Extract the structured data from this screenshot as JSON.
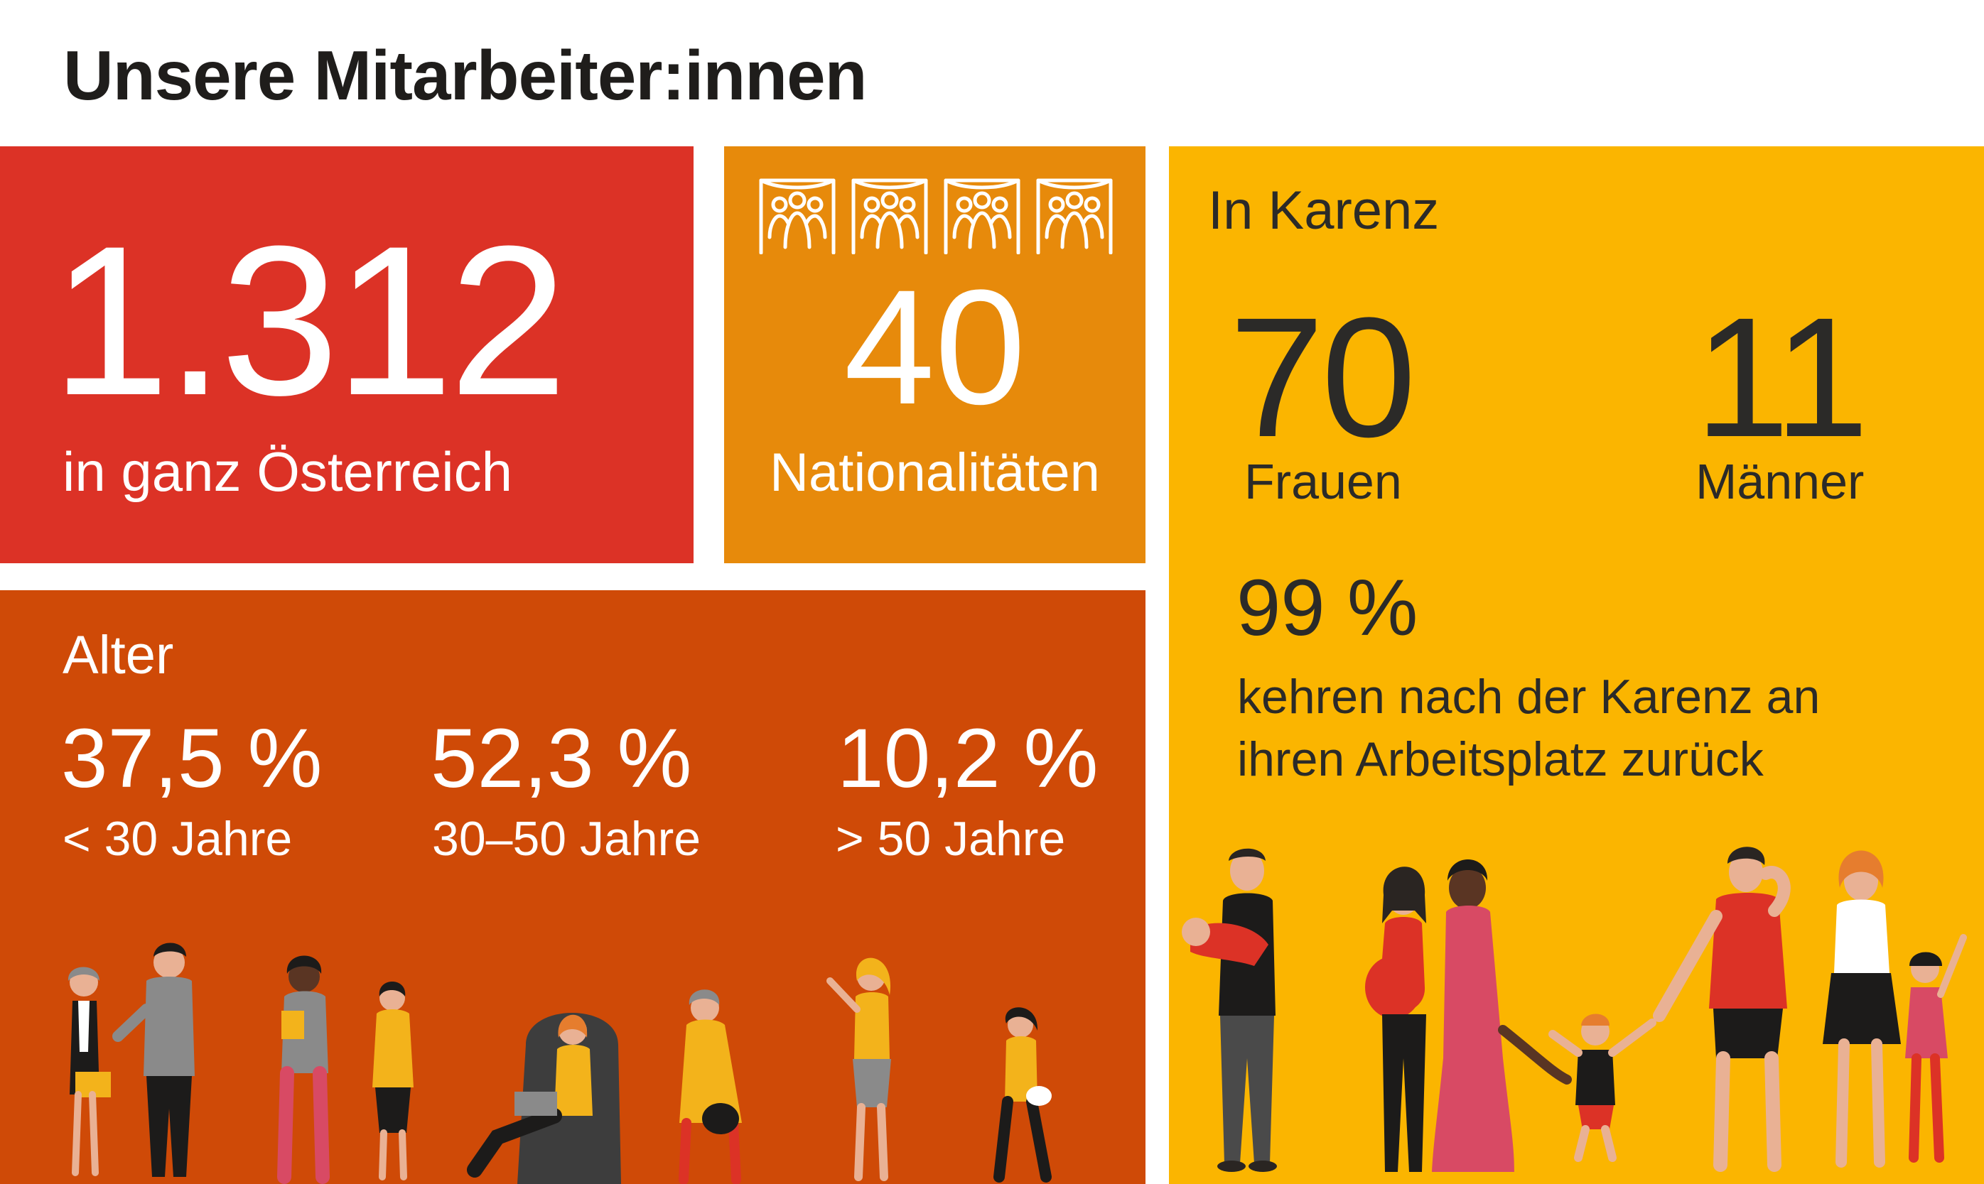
{
  "title": "Unsere Mitarbeiter:innen",
  "colors": {
    "red": "#dc3226",
    "orange": "#e78a0b",
    "yellow": "#fbb500",
    "rust": "#cf4a07",
    "text_dark": "#1f1d1b"
  },
  "employees": {
    "value": "1.312",
    "label": "in ganz Österreich"
  },
  "nationalities": {
    "icon": "group-icon",
    "value": "40",
    "label": "Nationalitäten"
  },
  "parental_leave": {
    "heading": "In Karenz",
    "women_value": "70",
    "women_label": "Frauen",
    "men_value": "11",
    "men_label": "Männer",
    "return_value": "99 %",
    "return_line1": "kehren nach der Karenz an",
    "return_line2": "ihren Arbeitsplatz zurück"
  },
  "age": {
    "heading": "Alter",
    "groups": [
      {
        "value": "37,5 %",
        "label": "< 30 Jahre"
      },
      {
        "value": "52,3 %",
        "label": "30–50 Jahre"
      },
      {
        "value": "10,2 %",
        "label": "> 50 Jahre"
      }
    ]
  },
  "illustrations": {
    "age_people": "people-illustration",
    "family_people": "family-illustration"
  }
}
